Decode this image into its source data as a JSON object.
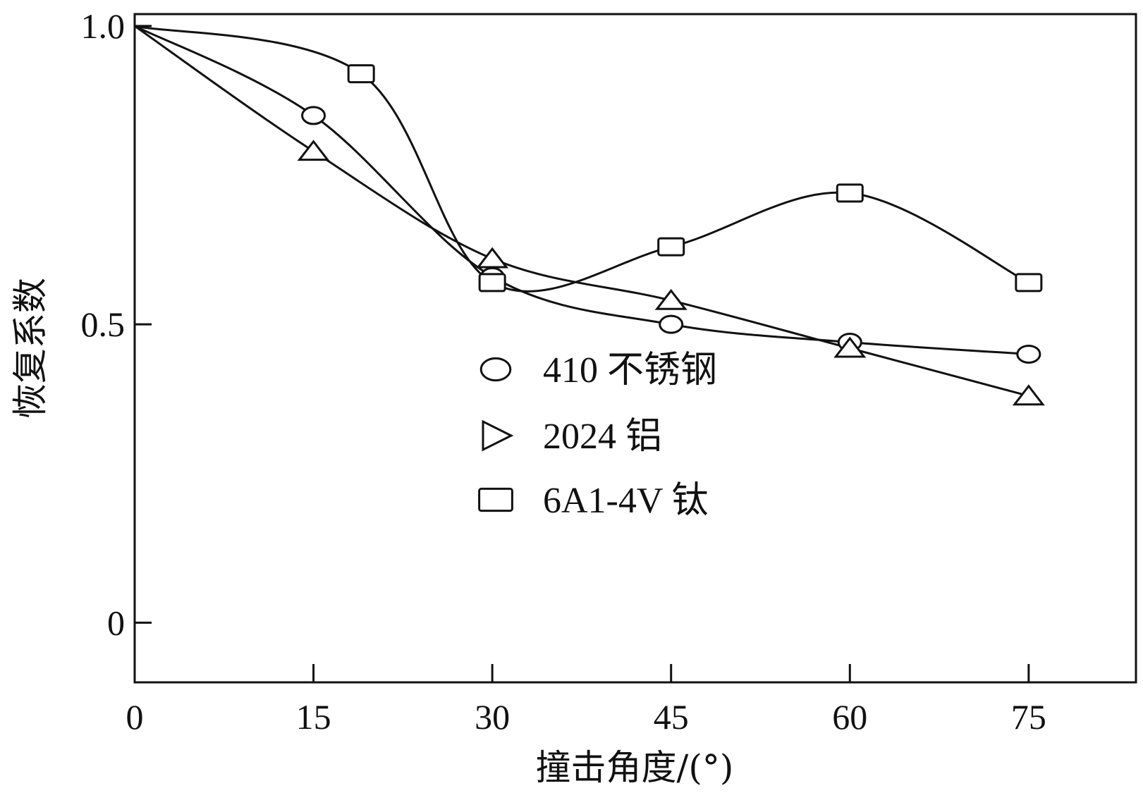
{
  "chart_data": {
    "type": "line",
    "title": "",
    "xlabel": "撞击角度/(°)",
    "ylabel": "恢复系数",
    "xlim": [
      0,
      84
    ],
    "ylim": [
      -0.1,
      1.02
    ],
    "x_ticks": [
      0,
      15,
      30,
      45,
      60,
      75
    ],
    "x_tick_labels": [
      "0",
      "15",
      "30",
      "45",
      "60",
      "75"
    ],
    "y_ticks": [
      0,
      0.5,
      1.0
    ],
    "y_tick_labels": [
      "0",
      "0.5",
      "1.0"
    ],
    "grid": false,
    "legend_position": "center",
    "series": [
      {
        "name": "410 不锈钢",
        "marker": "circle",
        "color": "#111111",
        "x": [
          0,
          15,
          30,
          45,
          60,
          75
        ],
        "y": [
          1.0,
          0.85,
          0.58,
          0.5,
          0.47,
          0.45
        ]
      },
      {
        "name": "2024 铝",
        "marker": "triangle-right",
        "color": "#111111",
        "x": [
          0,
          15,
          30,
          45,
          60,
          75
        ],
        "y": [
          1.0,
          0.79,
          0.61,
          0.54,
          0.46,
          0.38
        ]
      },
      {
        "name": "6A1-4V 钛",
        "marker": "square",
        "color": "#111111",
        "x": [
          0,
          19,
          30,
          45,
          60,
          75
        ],
        "y": [
          1.0,
          0.92,
          0.57,
          0.63,
          0.72,
          0.57
        ]
      }
    ]
  }
}
